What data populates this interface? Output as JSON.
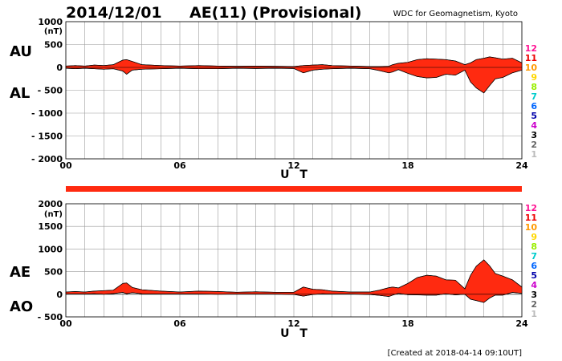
{
  "header": {
    "date": "2014/12/01",
    "title": "AE(11) (Provisional)",
    "source": "WDC for Geomagnetism, Kyoto"
  },
  "footer": {
    "created": "[Created at 2018-04-14 09:10UT]"
  },
  "colors": {
    "fill": "#ff2a10",
    "grid": "#999999",
    "bar": "#ff2a10"
  },
  "legend": [
    {
      "label": "12",
      "color": "#ff1493"
    },
    {
      "label": "11",
      "color": "#ee0000"
    },
    {
      "label": "10",
      "color": "#ff9900"
    },
    {
      "label": "9",
      "color": "#ffd700"
    },
    {
      "label": "8",
      "color": "#99ee00"
    },
    {
      "label": "7",
      "color": "#00cccc"
    },
    {
      "label": "6",
      "color": "#0066ff"
    },
    {
      "label": "5",
      "color": "#0000aa"
    },
    {
      "label": "4",
      "color": "#cc00cc"
    },
    {
      "label": "3",
      "color": "#000000"
    },
    {
      "label": "2",
      "color": "#666666"
    },
    {
      "label": "1",
      "color": "#bbbbbb"
    }
  ],
  "chart_data": [
    {
      "type": "area",
      "unit": "(nT)",
      "xlabel": "U T",
      "xlim": [
        0,
        24
      ],
      "xticks": [
        "00",
        "06",
        "12",
        "18",
        "24"
      ],
      "ylim": [
        -2000,
        1000
      ],
      "yticks": [
        "1000",
        "500",
        "0",
        "- 500",
        "- 1000",
        "- 1500",
        "- 2000"
      ],
      "side_labels": [
        "AU",
        "AL"
      ],
      "grid": true,
      "series": [
        {
          "name": "AU",
          "x": [
            0,
            0.5,
            1,
            1.5,
            2,
            2.5,
            3,
            3.2,
            3.5,
            4,
            5,
            6,
            7,
            8,
            9,
            10,
            11,
            12,
            12.5,
            13,
            13.5,
            14,
            15,
            16,
            16.5,
            17,
            17.2,
            17.5,
            18,
            18.5,
            19,
            19.5,
            20,
            20.5,
            21,
            21.3,
            21.6,
            22,
            22.3,
            22.6,
            23,
            23.5,
            24
          ],
          "values": [
            30,
            40,
            30,
            50,
            40,
            60,
            160,
            170,
            130,
            60,
            40,
            30,
            40,
            30,
            25,
            30,
            25,
            20,
            40,
            50,
            60,
            40,
            30,
            20,
            20,
            25,
            60,
            90,
            110,
            170,
            190,
            180,
            170,
            140,
            60,
            100,
            170,
            200,
            230,
            210,
            180,
            200,
            100
          ]
        },
        {
          "name": "AL",
          "x": [
            0,
            0.5,
            1,
            1.5,
            2,
            2.5,
            3,
            3.2,
            3.5,
            4,
            5,
            6,
            7,
            8,
            9,
            10,
            11,
            12,
            12.5,
            13,
            13.5,
            14,
            15,
            16,
            16.5,
            17,
            17.2,
            17.5,
            18,
            18.5,
            19,
            19.5,
            20,
            20.5,
            21,
            21.3,
            21.6,
            22,
            22.3,
            22.6,
            23,
            23.5,
            24
          ],
          "values": [
            -20,
            -30,
            -20,
            -30,
            -40,
            -30,
            -80,
            -150,
            -60,
            -40,
            -30,
            -20,
            -30,
            -30,
            -20,
            -25,
            -20,
            -25,
            -120,
            -60,
            -40,
            -30,
            -20,
            -30,
            -70,
            -120,
            -100,
            -50,
            -130,
            -200,
            -230,
            -220,
            -150,
            -170,
            -60,
            -320,
            -450,
            -560,
            -400,
            -250,
            -220,
            -120,
            -60
          ]
        }
      ]
    },
    {
      "type": "area",
      "unit": "(nT)",
      "xlabel": "U T",
      "xlim": [
        0,
        24
      ],
      "xticks": [
        "00",
        "06",
        "12",
        "18",
        "24"
      ],
      "ylim": [
        -500,
        2000
      ],
      "yticks": [
        "2000",
        "1500",
        "1000",
        "500",
        "0",
        "- 500"
      ],
      "side_labels": [
        "AE",
        "AO"
      ],
      "grid": true,
      "series": [
        {
          "name": "AE",
          "x": [
            0,
            0.5,
            1,
            1.5,
            2,
            2.5,
            3,
            3.2,
            3.5,
            4,
            5,
            6,
            7,
            8,
            9,
            10,
            11,
            12,
            12.5,
            13,
            13.5,
            14,
            15,
            16,
            16.5,
            17,
            17.2,
            17.5,
            18,
            18.5,
            19,
            19.5,
            20,
            20.5,
            21,
            21.3,
            21.6,
            22,
            22.3,
            22.6,
            23,
            23.5,
            24
          ],
          "values": [
            50,
            60,
            50,
            70,
            80,
            90,
            240,
            250,
            150,
            100,
            70,
            50,
            70,
            60,
            45,
            55,
            45,
            45,
            160,
            110,
            100,
            70,
            50,
            50,
            90,
            145,
            160,
            140,
            240,
            370,
            420,
            400,
            320,
            310,
            120,
            420,
            620,
            760,
            630,
            460,
            400,
            320,
            160
          ]
        },
        {
          "name": "AO",
          "x": [
            0,
            0.5,
            1,
            1.5,
            2,
            2.5,
            3,
            3.2,
            3.5,
            4,
            5,
            6,
            7,
            8,
            9,
            10,
            11,
            12,
            12.5,
            13,
            13.5,
            14,
            15,
            16,
            16.5,
            17,
            17.2,
            17.5,
            18,
            18.5,
            19,
            19.5,
            20,
            20.5,
            21,
            21.3,
            21.6,
            22,
            22.3,
            22.6,
            23,
            23.5,
            24
          ],
          "values": [
            5,
            5,
            5,
            10,
            0,
            15,
            40,
            10,
            35,
            10,
            5,
            5,
            5,
            0,
            3,
            3,
            3,
            -3,
            -40,
            -5,
            10,
            5,
            5,
            -5,
            -25,
            -50,
            -20,
            20,
            -10,
            -15,
            -20,
            -20,
            10,
            -15,
            0,
            -110,
            -140,
            -180,
            -85,
            -20,
            -20,
            40,
            20
          ]
        }
      ]
    }
  ]
}
